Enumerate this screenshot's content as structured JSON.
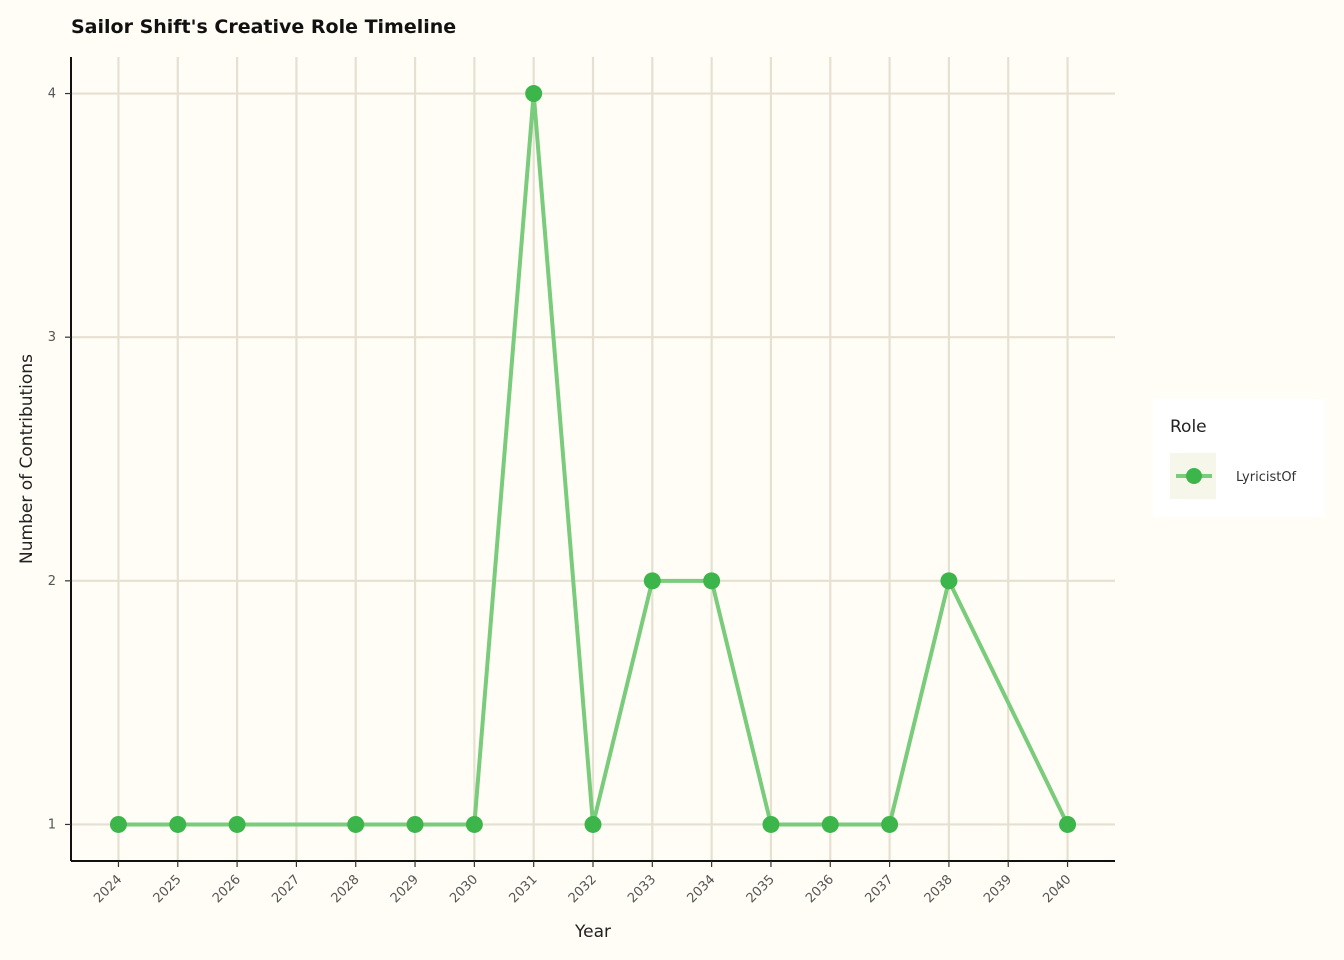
{
  "chart_data": {
    "type": "line",
    "title": "Sailor Shift's Creative Role Timeline",
    "xlabel": "Year",
    "ylabel": "Number of Contributions",
    "x_ticks": [
      "2024",
      "2025",
      "2026",
      "2027",
      "2028",
      "2029",
      "2030",
      "2031",
      "2032",
      "2033",
      "2034",
      "2035",
      "2036",
      "2037",
      "2038",
      "2039",
      "2040"
    ],
    "y_ticks": [
      1,
      2,
      3,
      4
    ],
    "xlim": [
      2023.2,
      2040.8
    ],
    "ylim": [
      0.85,
      4.15
    ],
    "grid": true,
    "legend": {
      "title": "Role",
      "position": "right"
    },
    "series": [
      {
        "name": "LyricistOf",
        "color": "#3cb54a",
        "line_color": "#79cc7b",
        "x": [
          2024,
          2025,
          2026,
          2028,
          2029,
          2030,
          2031,
          2032,
          2033,
          2034,
          2035,
          2036,
          2037,
          2038,
          2040
        ],
        "y": [
          1,
          1,
          1,
          1,
          1,
          1,
          4,
          1,
          2,
          2,
          1,
          1,
          1,
          2,
          1
        ]
      }
    ]
  }
}
